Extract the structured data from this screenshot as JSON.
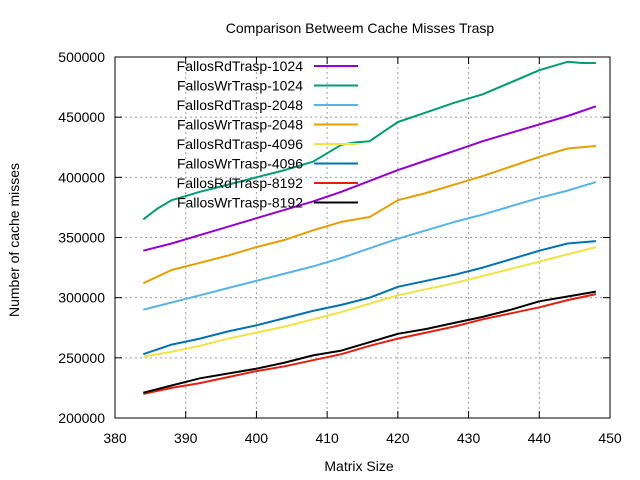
{
  "chart_data": {
    "type": "line",
    "title": "Comparison Betweem Cache Misses Trasp",
    "xlabel": "Matrix Size",
    "ylabel": "Number of cache misses",
    "xlim": [
      380,
      450
    ],
    "ylim": [
      200000,
      500000
    ],
    "xticks": [
      380,
      390,
      400,
      410,
      420,
      430,
      440,
      450
    ],
    "yticks": [
      200000,
      250000,
      300000,
      350000,
      400000,
      450000,
      500000
    ],
    "xtick_labels": [
      "380",
      "390",
      "400",
      "410",
      "420",
      "430",
      "440",
      "450"
    ],
    "ytick_labels": [
      "200000",
      "250000",
      "300000",
      "350000",
      "400000",
      "450000",
      "500000"
    ],
    "grid": true,
    "legend_position": "top-left",
    "series": [
      {
        "name": "FallosRdTrasp-1024",
        "color": "#9400d3",
        "points": [
          [
            384,
            339000
          ],
          [
            388,
            345000
          ],
          [
            392,
            352000
          ],
          [
            396,
            359000
          ],
          [
            400,
            366000
          ],
          [
            404,
            373000
          ],
          [
            408,
            380000
          ],
          [
            412,
            388000
          ],
          [
            416,
            397000
          ],
          [
            420,
            406000
          ],
          [
            424,
            414000
          ],
          [
            428,
            422000
          ],
          [
            432,
            430000
          ],
          [
            436,
            437000
          ],
          [
            440,
            444000
          ],
          [
            444,
            451000
          ],
          [
            448,
            459000
          ]
        ]
      },
      {
        "name": "FallosWrTrasp-1024",
        "color": "#009e73",
        "points": [
          [
            384,
            365000
          ],
          [
            386,
            374000
          ],
          [
            388,
            381000
          ],
          [
            392,
            388000
          ],
          [
            396,
            394000
          ],
          [
            400,
            400000
          ],
          [
            404,
            406000
          ],
          [
            408,
            413000
          ],
          [
            412,
            427000
          ],
          [
            414,
            429000
          ],
          [
            416,
            430000
          ],
          [
            418,
            438000
          ],
          [
            420,
            446000
          ],
          [
            424,
            454000
          ],
          [
            428,
            462000
          ],
          [
            432,
            469000
          ],
          [
            436,
            479000
          ],
          [
            440,
            489000
          ],
          [
            444,
            496000
          ],
          [
            446,
            495000
          ],
          [
            448,
            495000
          ]
        ]
      },
      {
        "name": "FallosRdTrasp-2048",
        "color": "#56b4e9",
        "points": [
          [
            384,
            290000
          ],
          [
            388,
            296000
          ],
          [
            392,
            302000
          ],
          [
            396,
            308000
          ],
          [
            400,
            314000
          ],
          [
            404,
            320000
          ],
          [
            408,
            326000
          ],
          [
            412,
            333000
          ],
          [
            416,
            341000
          ],
          [
            420,
            349000
          ],
          [
            424,
            356000
          ],
          [
            428,
            363000
          ],
          [
            432,
            369000
          ],
          [
            436,
            376000
          ],
          [
            440,
            383000
          ],
          [
            444,
            389000
          ],
          [
            448,
            396000
          ]
        ]
      },
      {
        "name": "FallosWrTrasp-2048",
        "color": "#e69f00",
        "points": [
          [
            384,
            312000
          ],
          [
            388,
            323000
          ],
          [
            392,
            329000
          ],
          [
            396,
            335000
          ],
          [
            400,
            342000
          ],
          [
            404,
            348000
          ],
          [
            408,
            356000
          ],
          [
            412,
            363000
          ],
          [
            416,
            367000
          ],
          [
            420,
            381000
          ],
          [
            424,
            387000
          ],
          [
            428,
            394000
          ],
          [
            432,
            401000
          ],
          [
            436,
            409000
          ],
          [
            440,
            417000
          ],
          [
            444,
            424000
          ],
          [
            446,
            425000
          ],
          [
            448,
            426000
          ]
        ]
      },
      {
        "name": "FallosRdTrasp-4096",
        "color": "#f0e442",
        "points": [
          [
            384,
            251000
          ],
          [
            388,
            255000
          ],
          [
            392,
            260000
          ],
          [
            396,
            266000
          ],
          [
            400,
            271000
          ],
          [
            404,
            276000
          ],
          [
            408,
            282000
          ],
          [
            412,
            288000
          ],
          [
            416,
            295000
          ],
          [
            420,
            302000
          ],
          [
            424,
            307000
          ],
          [
            428,
            312000
          ],
          [
            432,
            318000
          ],
          [
            436,
            324000
          ],
          [
            440,
            330000
          ],
          [
            444,
            336000
          ],
          [
            448,
            342000
          ]
        ]
      },
      {
        "name": "FallosWrTrasp-4096",
        "color": "#0072b2",
        "points": [
          [
            384,
            253000
          ],
          [
            388,
            261000
          ],
          [
            392,
            266000
          ],
          [
            396,
            272000
          ],
          [
            400,
            277000
          ],
          [
            404,
            283000
          ],
          [
            408,
            289000
          ],
          [
            412,
            294000
          ],
          [
            416,
            300000
          ],
          [
            420,
            309000
          ],
          [
            424,
            314000
          ],
          [
            428,
            319000
          ],
          [
            432,
            325000
          ],
          [
            436,
            332000
          ],
          [
            440,
            339000
          ],
          [
            444,
            345000
          ],
          [
            448,
            347000
          ]
        ]
      },
      {
        "name": "FallosRdTrasp-8192",
        "color": "#e51e10",
        "points": [
          [
            384,
            220000
          ],
          [
            388,
            225000
          ],
          [
            392,
            229000
          ],
          [
            396,
            234000
          ],
          [
            400,
            239000
          ],
          [
            404,
            243000
          ],
          [
            408,
            248000
          ],
          [
            412,
            253000
          ],
          [
            416,
            260000
          ],
          [
            420,
            266000
          ],
          [
            424,
            271000
          ],
          [
            428,
            276000
          ],
          [
            432,
            282000
          ],
          [
            436,
            287000
          ],
          [
            440,
            292000
          ],
          [
            444,
            298000
          ],
          [
            448,
            303000
          ]
        ]
      },
      {
        "name": "FallosWrTrasp-8192",
        "color": "#000000",
        "points": [
          [
            384,
            221000
          ],
          [
            388,
            227000
          ],
          [
            392,
            233000
          ],
          [
            396,
            237000
          ],
          [
            400,
            241000
          ],
          [
            404,
            246000
          ],
          [
            408,
            252000
          ],
          [
            412,
            256000
          ],
          [
            416,
            263000
          ],
          [
            420,
            270000
          ],
          [
            424,
            274000
          ],
          [
            428,
            279000
          ],
          [
            432,
            284000
          ],
          [
            436,
            290000
          ],
          [
            440,
            297000
          ],
          [
            444,
            301000
          ],
          [
            448,
            305000
          ]
        ]
      }
    ]
  }
}
